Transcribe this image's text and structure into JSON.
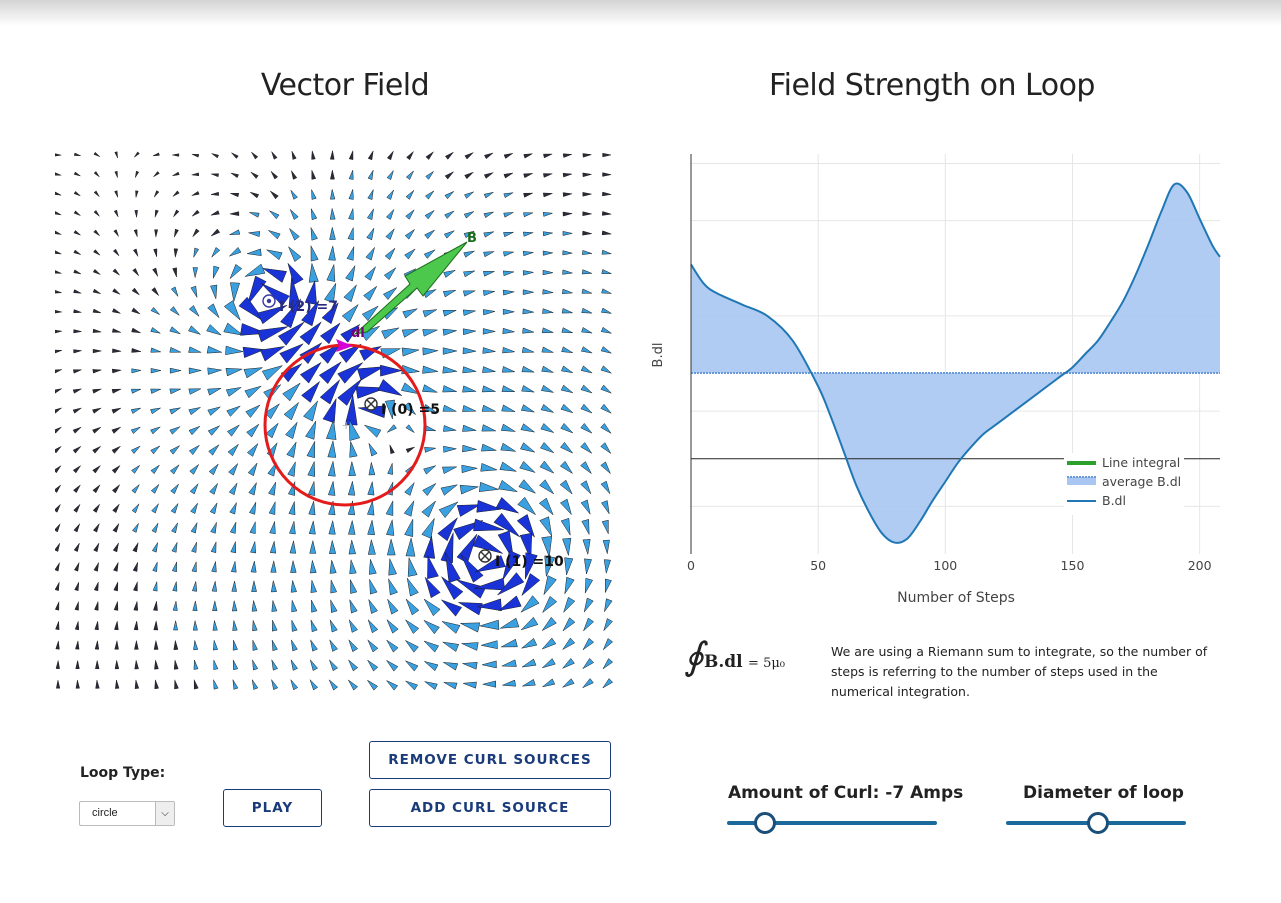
{
  "vector_field": {
    "title": "Vector Field",
    "labels": {
      "b": "B",
      "dl": "dl",
      "i0": "I (0) =5",
      "i1": "I (1) =10",
      "i2": "I (2) =7"
    },
    "sources": [
      {
        "name": "I (0)",
        "current": 5,
        "direction": "into-page"
      },
      {
        "name": "I (1)",
        "current": 10,
        "direction": "into-page"
      },
      {
        "name": "I (2)",
        "current": 7,
        "direction": "out-of-page"
      }
    ],
    "colors": {
      "loop": "#e31b1b",
      "b_arrow": "#4cc94c",
      "strong_arrow": "#1a33d6",
      "arrow": "#3aa0e0",
      "dl_marker": "#d400d4"
    }
  },
  "field_chart": {
    "title": "Field Strength on Loop",
    "ylabel": "B.dl",
    "xlabel": "Number of Steps",
    "x_ticks": [
      "0",
      "50",
      "100",
      "150",
      "200"
    ],
    "legend": [
      "Line integral",
      "average B.dl",
      "B.dl"
    ]
  },
  "chart_data": {
    "type": "area",
    "title": "Field Strength on Loop",
    "xlabel": "Number of Steps",
    "ylabel": "B.dl",
    "xlim": [
      0,
      208
    ],
    "ylim": [
      -0.5,
      1.6
    ],
    "grid": true,
    "legend_position": "bottom-right",
    "average": 0.45,
    "series": [
      {
        "name": "B.dl",
        "x": [
          0,
          5,
          10,
          20,
          30,
          40,
          50,
          55,
          60,
          65,
          70,
          75,
          80,
          85,
          90,
          95,
          100,
          105,
          110,
          115,
          120,
          125,
          130,
          135,
          140,
          145,
          150,
          155,
          160,
          165,
          170,
          175,
          180,
          185,
          190,
          195,
          200,
          205,
          208
        ],
        "y": [
          1.02,
          0.92,
          0.87,
          0.81,
          0.75,
          0.62,
          0.38,
          0.22,
          0.04,
          -0.14,
          -0.28,
          -0.39,
          -0.44,
          -0.42,
          -0.33,
          -0.22,
          -0.12,
          -0.02,
          0.06,
          0.13,
          0.18,
          0.23,
          0.28,
          0.33,
          0.38,
          0.43,
          0.48,
          0.55,
          0.62,
          0.72,
          0.83,
          0.97,
          1.13,
          1.3,
          1.44,
          1.4,
          1.26,
          1.12,
          1.06
        ]
      },
      {
        "name": "average B.dl",
        "y_const": 0.45
      },
      {
        "name": "Line integral"
      }
    ],
    "colors": {
      "line": "#1f77b4",
      "fill": "#a9c6f2",
      "average": "#6b9ad8",
      "integral": "#2ca02c"
    }
  },
  "formula": {
    "integral": "∮",
    "expr": "B.dl",
    "equals": "= 5μ₀"
  },
  "note": "We are using a Riemann sum to integrate, so the number of steps is referring to the number of steps used in the numerical integration.",
  "controls": {
    "loop_type_label": "Loop Type:",
    "loop_type_value": "circle",
    "play": "PLAY",
    "remove_curl": "REMOVE CURL SOURCES",
    "add_curl": "ADD CURL SOURCE",
    "curl_label": "Amount of Curl: -7 Amps",
    "curl_value": 0.18,
    "diameter_label": "Diameter of loop",
    "diameter_value": 0.51
  }
}
